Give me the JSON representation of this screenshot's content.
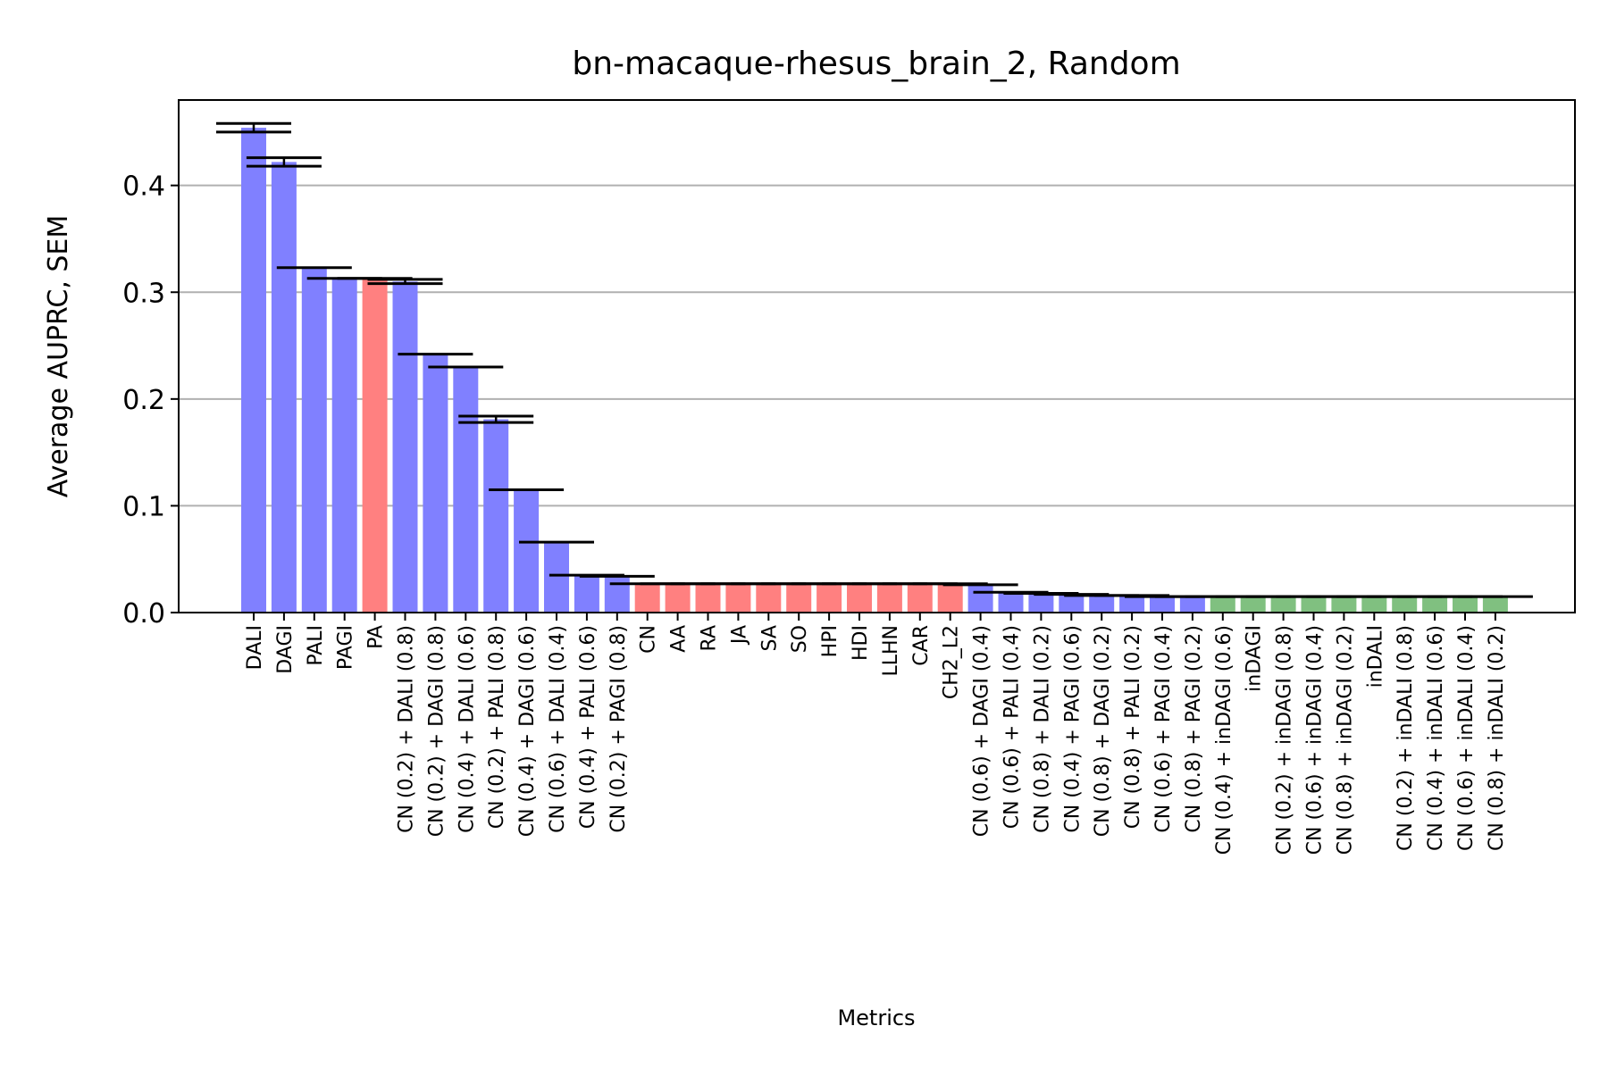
{
  "chart_data": {
    "type": "bar",
    "title": "bn-macaque-rhesus_brain_2, Random",
    "xlabel": "Metrics",
    "ylabel": "Average AUPRC, SEM",
    "ylim": [
      0,
      0.48
    ],
    "yticks": [
      "0.0",
      "0.1",
      "0.2",
      "0.3",
      "0.4"
    ],
    "grid": "y",
    "colors": {
      "blue": "#8080ff",
      "red": "#ff8080",
      "green": "#80c080"
    },
    "categories": [
      "DALI",
      "DAGI",
      "PALI",
      "PAGI",
      "PA",
      "CN (0.2) + DALI (0.8)",
      "CN (0.2) + DAGI (0.8)",
      "CN (0.4) + DALI (0.6)",
      "CN (0.2) + PALI (0.8)",
      "CN (0.4) + DAGI (0.6)",
      "CN (0.6) + DALI (0.4)",
      "CN (0.4) + PALI (0.6)",
      "CN (0.2) + PAGI (0.8)",
      "CN",
      "AA",
      "RA",
      "JA",
      "SA",
      "SO",
      "HPI",
      "HDI",
      "LLHN",
      "CAR",
      "CH2_L2",
      "CN (0.6) + DAGI (0.4)",
      "CN (0.6) + PALI (0.4)",
      "CN (0.8) + DALI (0.2)",
      "CN (0.4) + PAGI (0.6)",
      "CN (0.8) + DAGI (0.2)",
      "CN (0.8) + PALI (0.2)",
      "CN (0.6) + PAGI (0.4)",
      "CN (0.8) + PAGI (0.2)",
      "CN (0.4) + inDAGI (0.6)",
      "inDAGI",
      "CN (0.2) + inDAGI (0.8)",
      "CN (0.6) + inDAGI (0.4)",
      "CN (0.8) + inDAGI (0.2)",
      "inDALI",
      "CN (0.2) + inDALI (0.8)",
      "CN (0.4) + inDALI (0.6)",
      "CN (0.6) + inDALI (0.4)",
      "CN (0.8) + inDALI (0.2)"
    ],
    "values": [
      0.454,
      0.422,
      0.323,
      0.313,
      0.313,
      0.31,
      0.242,
      0.23,
      0.181,
      0.115,
      0.066,
      0.035,
      0.034,
      0.027,
      0.027,
      0.027,
      0.027,
      0.027,
      0.027,
      0.027,
      0.027,
      0.027,
      0.027,
      0.027,
      0.026,
      0.019,
      0.018,
      0.017,
      0.016,
      0.016,
      0.015,
      0.015,
      0.015,
      0.015,
      0.015,
      0.015,
      0.015,
      0.015,
      0.015,
      0.015,
      0.015,
      0.015
    ],
    "errors": [
      0.004,
      0.004,
      0.0,
      0.0,
      0.0,
      0.002,
      0.0,
      0.0,
      0.003,
      0.0,
      0.0,
      0.0,
      0.0,
      0.0,
      0.0,
      0.0,
      0.0,
      0.0,
      0.0,
      0.0,
      0.0,
      0.0,
      0.0,
      0.0,
      0.0,
      0.0,
      0.0,
      0.0,
      0.0,
      0.0,
      0.0,
      0.0,
      0.0,
      0.0,
      0.0,
      0.0,
      0.0,
      0.0,
      0.0,
      0.0,
      0.0,
      0.0
    ],
    "bar_colors": [
      "blue",
      "blue",
      "blue",
      "blue",
      "red",
      "blue",
      "blue",
      "blue",
      "blue",
      "blue",
      "blue",
      "blue",
      "blue",
      "red",
      "red",
      "red",
      "red",
      "red",
      "red",
      "red",
      "red",
      "red",
      "red",
      "red",
      "blue",
      "blue",
      "blue",
      "blue",
      "blue",
      "blue",
      "blue",
      "blue",
      "green",
      "green",
      "green",
      "green",
      "green",
      "green",
      "green",
      "green",
      "green",
      "green"
    ]
  }
}
